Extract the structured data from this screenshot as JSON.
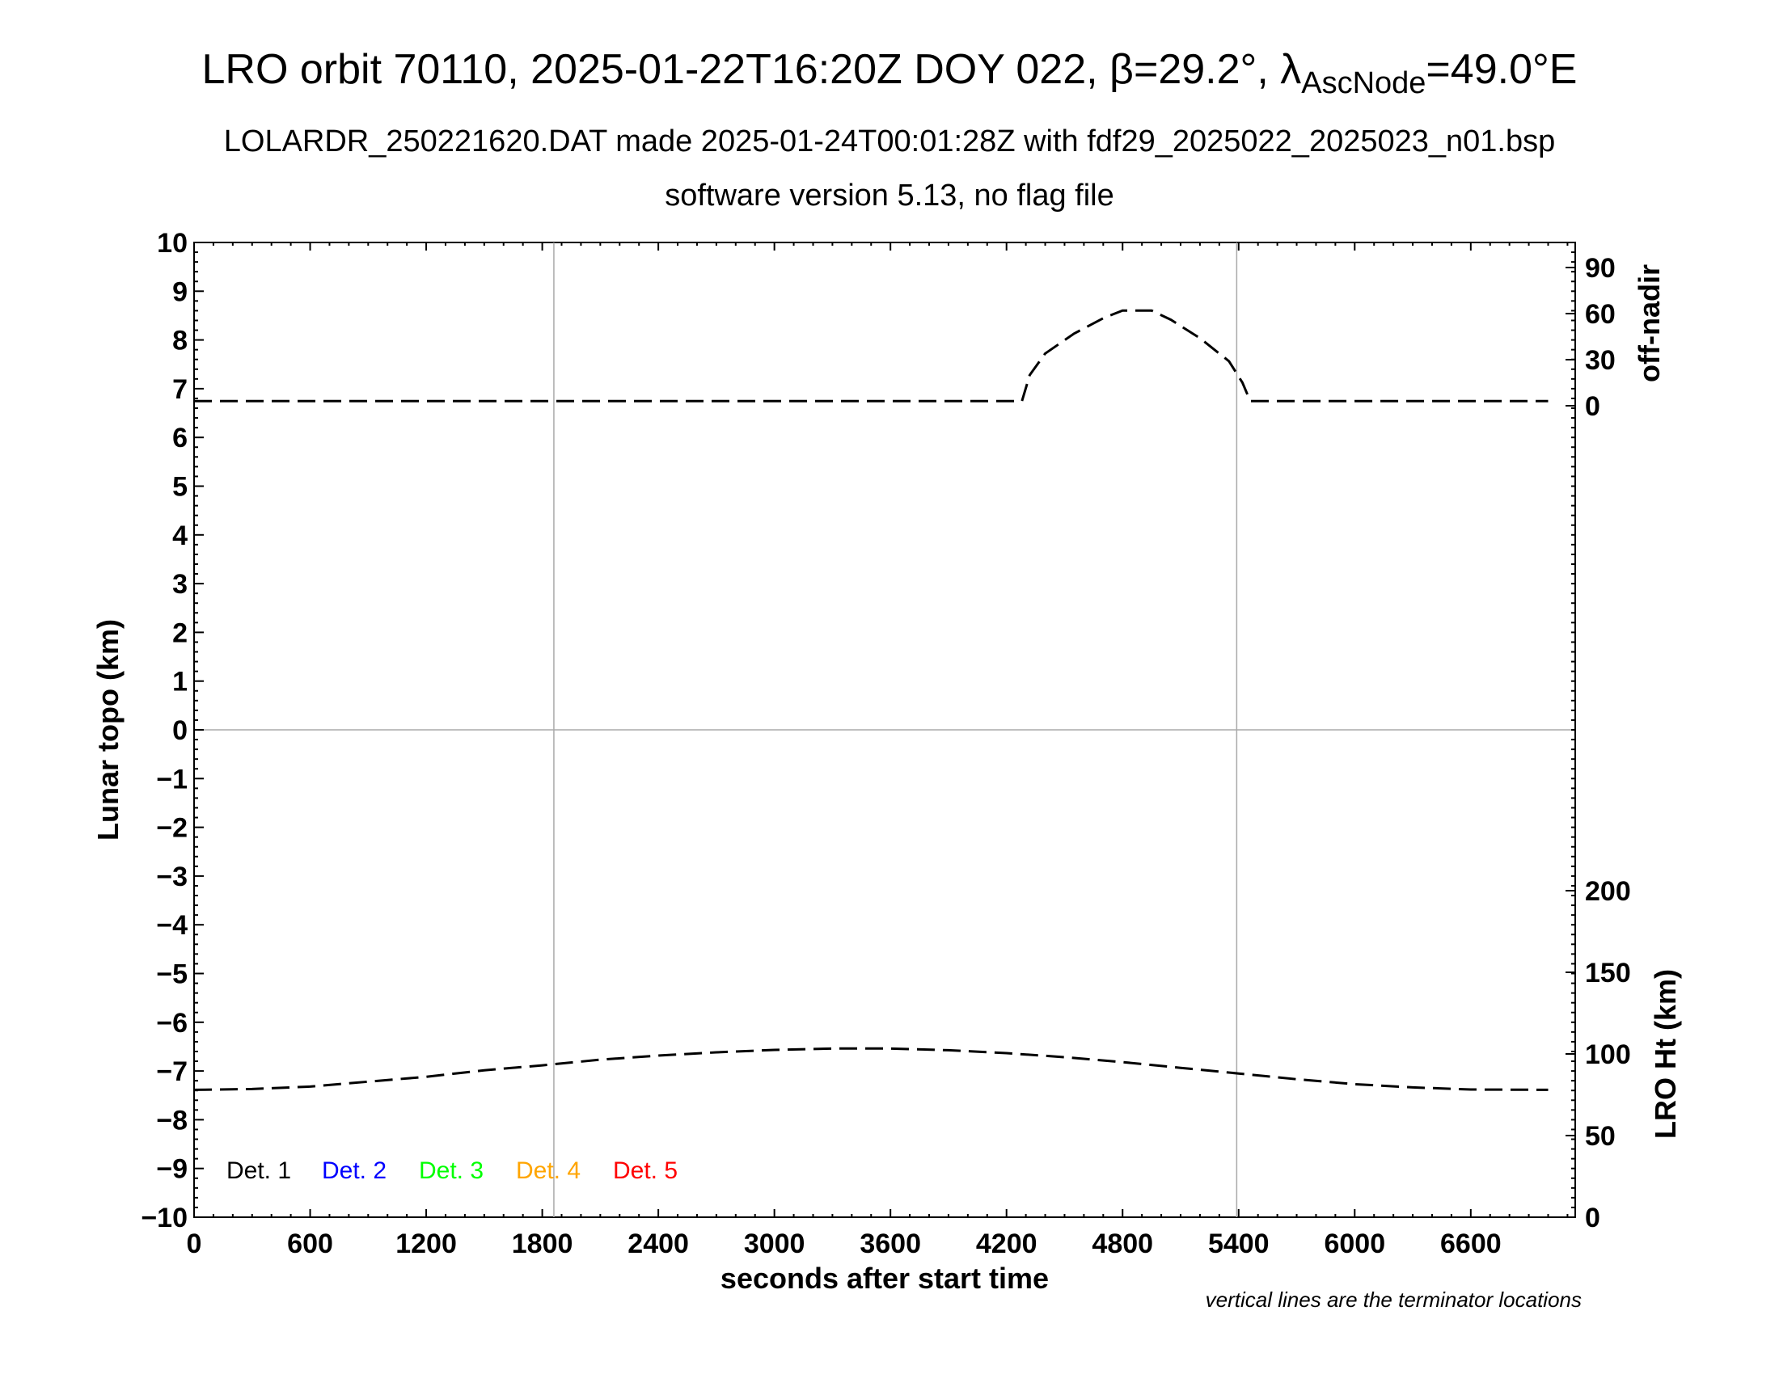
{
  "chart_data": {
    "type": "line",
    "title": "LRO orbit 70110, 2025-01-22T16:20Z DOY 022, β=29.2°, λ",
    "title_subscript": "AscNode",
    "title_suffix": "=49.0°E",
    "subtitle_line1": "LOLARDR_250221620.DAT made 2025-01-24T00:01:28Z with fdf29_2025022_2025023_n01.bsp",
    "subtitle_line2": "software version 5.13, no flag file",
    "xlabel": "seconds after start time",
    "ylabel": "Lunar topo (km)",
    "right_label_top": "off-nadir",
    "right_label_bottom": "LRO Ht (km)",
    "note": "vertical lines are the terminator locations",
    "xlim": [
      0,
      7140
    ],
    "ylim": [
      -10,
      10
    ],
    "x_ticks": [
      "0",
      "600",
      "1200",
      "1800",
      "2400",
      "3000",
      "3600",
      "4200",
      "4800",
      "5400",
      "6000",
      "6600"
    ],
    "x_tick_values": [
      0,
      600,
      1200,
      1800,
      2400,
      3000,
      3600,
      4200,
      4800,
      5400,
      6000,
      6600
    ],
    "y_ticks": [
      "10",
      "9",
      "8",
      "7",
      "6",
      "5",
      "4",
      "3",
      "2",
      "1",
      "0",
      "−1",
      "−2",
      "−3",
      "−4",
      "−5",
      "−6",
      "−7",
      "−8",
      "−9",
      "−10"
    ],
    "y_tick_values": [
      10,
      9,
      8,
      7,
      6,
      5,
      4,
      3,
      2,
      1,
      0,
      -1,
      -2,
      -3,
      -4,
      -5,
      -6,
      -7,
      -8,
      -9,
      -10
    ],
    "right_top_ticks": [
      "90",
      "60",
      "30",
      "0"
    ],
    "right_top_tick_values": [
      90,
      60,
      30,
      0
    ],
    "right_bottom_ticks": [
      "200",
      "150",
      "100",
      "50",
      "0"
    ],
    "right_bottom_tick_values": [
      200,
      150,
      100,
      50,
      0
    ],
    "terminator_x": [
      1860,
      5390
    ],
    "zero_line_y": 0,
    "legend": [
      {
        "label": "Det. 1",
        "color": "#000000"
      },
      {
        "label": "Det. 2",
        "color": "#0000ff"
      },
      {
        "label": "Det. 3",
        "color": "#00ff00"
      },
      {
        "label": "Det. 4",
        "color": "#ffa500"
      },
      {
        "label": "Det. 5",
        "color": "#ff0000"
      }
    ],
    "legend_placement": "bottom-left",
    "grid": false,
    "series": [
      {
        "axis": "off-nadir (deg)",
        "line_style": "dashed",
        "color": "#000000",
        "points": [
          [
            0,
            3
          ],
          [
            600,
            3
          ],
          [
            1200,
            3
          ],
          [
            1800,
            3
          ],
          [
            2400,
            3
          ],
          [
            3000,
            3
          ],
          [
            3600,
            3
          ],
          [
            4200,
            3
          ],
          [
            4280,
            3
          ],
          [
            4320,
            20
          ],
          [
            4400,
            34
          ],
          [
            4550,
            47
          ],
          [
            4700,
            57
          ],
          [
            4800,
            62
          ],
          [
            4900,
            62
          ],
          [
            4950,
            62
          ],
          [
            5050,
            56
          ],
          [
            5200,
            44
          ],
          [
            5350,
            29
          ],
          [
            5420,
            15
          ],
          [
            5460,
            3
          ],
          [
            6000,
            3
          ],
          [
            6600,
            3
          ],
          [
            7000,
            3
          ]
        ]
      },
      {
        "axis": "LRO Ht (km)",
        "line_style": "dashed",
        "color": "#000000",
        "points": [
          [
            0,
            78
          ],
          [
            300,
            78.5
          ],
          [
            600,
            80
          ],
          [
            900,
            83
          ],
          [
            1200,
            86
          ],
          [
            1500,
            90
          ],
          [
            1800,
            93
          ],
          [
            2100,
            96.5
          ],
          [
            2400,
            99
          ],
          [
            2700,
            101
          ],
          [
            3000,
            102.5
          ],
          [
            3300,
            103.3
          ],
          [
            3600,
            103.3
          ],
          [
            3900,
            102.3
          ],
          [
            4200,
            100.5
          ],
          [
            4500,
            98
          ],
          [
            4800,
            95
          ],
          [
            5100,
            91.5
          ],
          [
            5400,
            88
          ],
          [
            5700,
            84.5
          ],
          [
            6000,
            81.5
          ],
          [
            6300,
            79.5
          ],
          [
            6600,
            78.2
          ],
          [
            7000,
            78
          ]
        ]
      }
    ]
  }
}
